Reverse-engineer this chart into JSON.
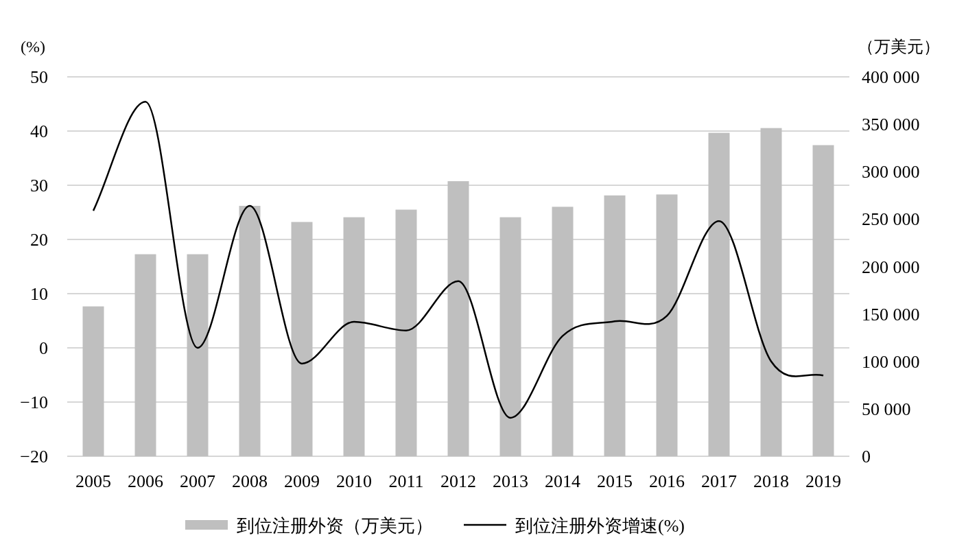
{
  "chart_data": {
    "type": "bar",
    "categories": [
      "2005",
      "2006",
      "2007",
      "2008",
      "2009",
      "2010",
      "2011",
      "2012",
      "2013",
      "2014",
      "2015",
      "2016",
      "2017",
      "2018",
      "2019"
    ],
    "series": [
      {
        "name": "到位注册外资（万美元）",
        "axis": "y2",
        "color": "#bfbfbf",
        "values": [
          158000,
          213000,
          213000,
          264000,
          247000,
          252000,
          260000,
          290000,
          252000,
          263000,
          275000,
          276000,
          341000,
          346000,
          328000
        ]
      },
      {
        "name": "到位注册外资增速(%)",
        "type": "line",
        "axis": "y",
        "color": "#000000",
        "values": [
          25.3,
          45.4,
          0,
          26.2,
          -2.9,
          4.8,
          3.2,
          12.3,
          -12.9,
          2.2,
          4.9,
          5.9,
          23.4,
          -2.5,
          -5.1
        ]
      }
    ],
    "ylabel": "(%)",
    "y2label": "（万美元）",
    "ylim": [
      -20,
      50
    ],
    "yticks": [
      {
        "value": -20,
        "label": "−20"
      },
      {
        "value": -10,
        "label": "−10"
      },
      0,
      10,
      20,
      30,
      40,
      50
    ],
    "y2lim": [
      0,
      400000
    ],
    "y2ticks": [
      0,
      {
        "value": 50000,
        "label": "50 000"
      },
      {
        "value": 100000,
        "label": "100 000"
      },
      {
        "value": 150000,
        "label": "150 000"
      },
      {
        "value": 200000,
        "label": "200 000"
      },
      {
        "value": 250000,
        "label": "250 000"
      },
      {
        "value": 300000,
        "label": "300 000"
      },
      {
        "value": 350000,
        "label": "350 000"
      },
      {
        "value": 400000,
        "label": "400 000"
      }
    ],
    "grid": "y",
    "legend": "bottom"
  }
}
